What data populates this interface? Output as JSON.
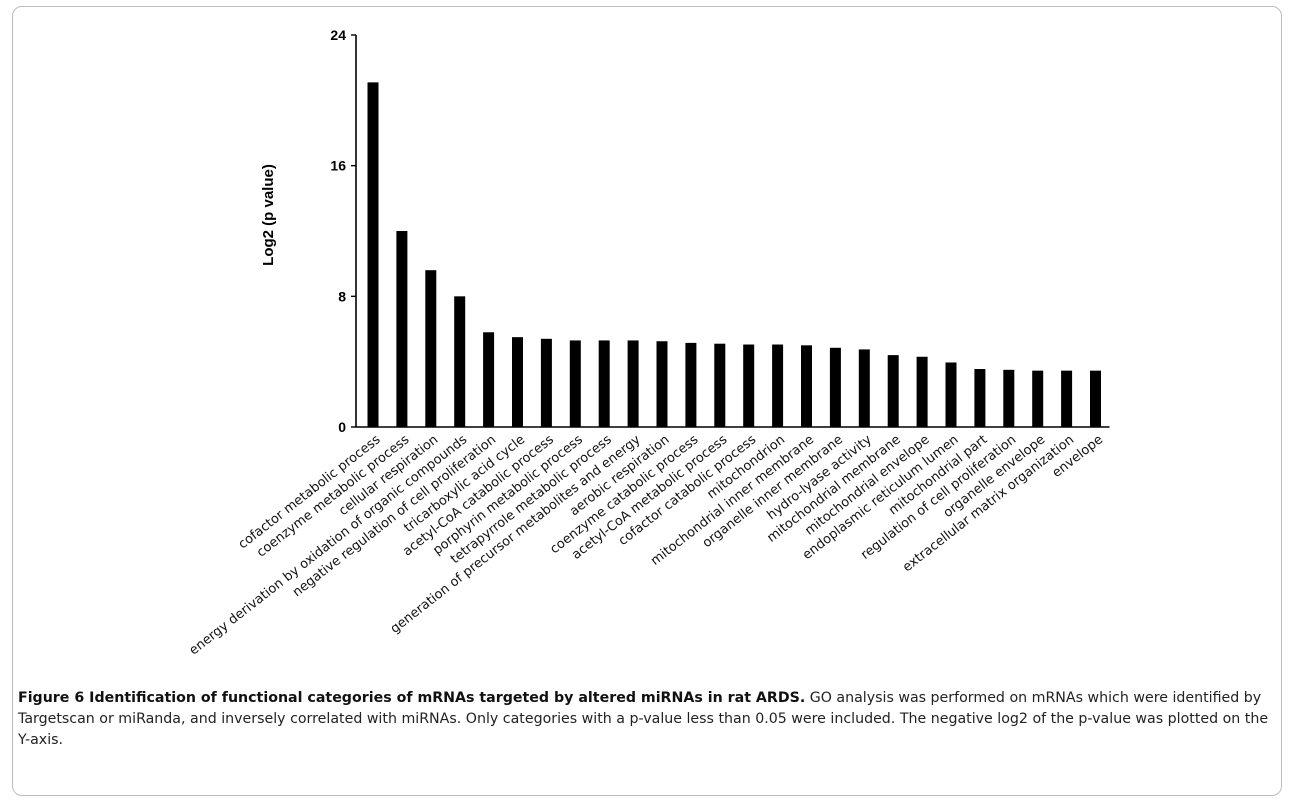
{
  "chart_data": {
    "type": "bar",
    "title": "",
    "xlabel": "",
    "ylabel": "Log2 (p value)",
    "ylim": [
      0,
      24
    ],
    "yticks": [
      0,
      8,
      16,
      24
    ],
    "grid": false,
    "bar_color": "#000000",
    "categories": [
      "cofactor metabolic process",
      "coenzyme metabolic process",
      "cellular respiration",
      "energy derivation by oxidation of organic compounds",
      "negative regulation of cell proliferation",
      "tricarboxylic acid cycle",
      "acetyl-CoA catabolic process",
      "porphyrin metabolic process",
      "tetrapyrrole metabolic process",
      "generation of precursor metabolites and energy",
      "aerobic respiration",
      "coenzyme catabolic process",
      "acetyl-CoA metabolic process",
      "cofactor catabolic process",
      "mitochondrion",
      "mitochondrial inner membrane",
      "organelle inner membrane",
      "hydro-lyase activity",
      "mitochondrial membrane",
      "mitochondrial envelope",
      "endoplasmic reticulum lumen",
      "mitochondrial part",
      "regulation of cell proliferation",
      "organelle envelope",
      "extracellular matrix organization",
      "envelope"
    ],
    "values": [
      21.1,
      12.0,
      9.6,
      8.0,
      5.8,
      5.5,
      5.4,
      5.3,
      5.3,
      5.3,
      5.25,
      5.15,
      5.1,
      5.05,
      5.05,
      5.0,
      4.85,
      4.75,
      4.4,
      4.3,
      3.95,
      3.55,
      3.5,
      3.45,
      3.45,
      3.45
    ]
  },
  "caption": {
    "label": "Figure 6 Identification of functional categories of mRNAs targeted by altered miRNAs in rat ARDS.",
    "text": " GO analysis was performed on mRNAs which were identified by Targetscan or miRanda, and inversely correlated with miRNAs. Only categories with a p-value less than 0.05 were included. The negative log2 of the p-value was plotted on the Y-axis."
  }
}
